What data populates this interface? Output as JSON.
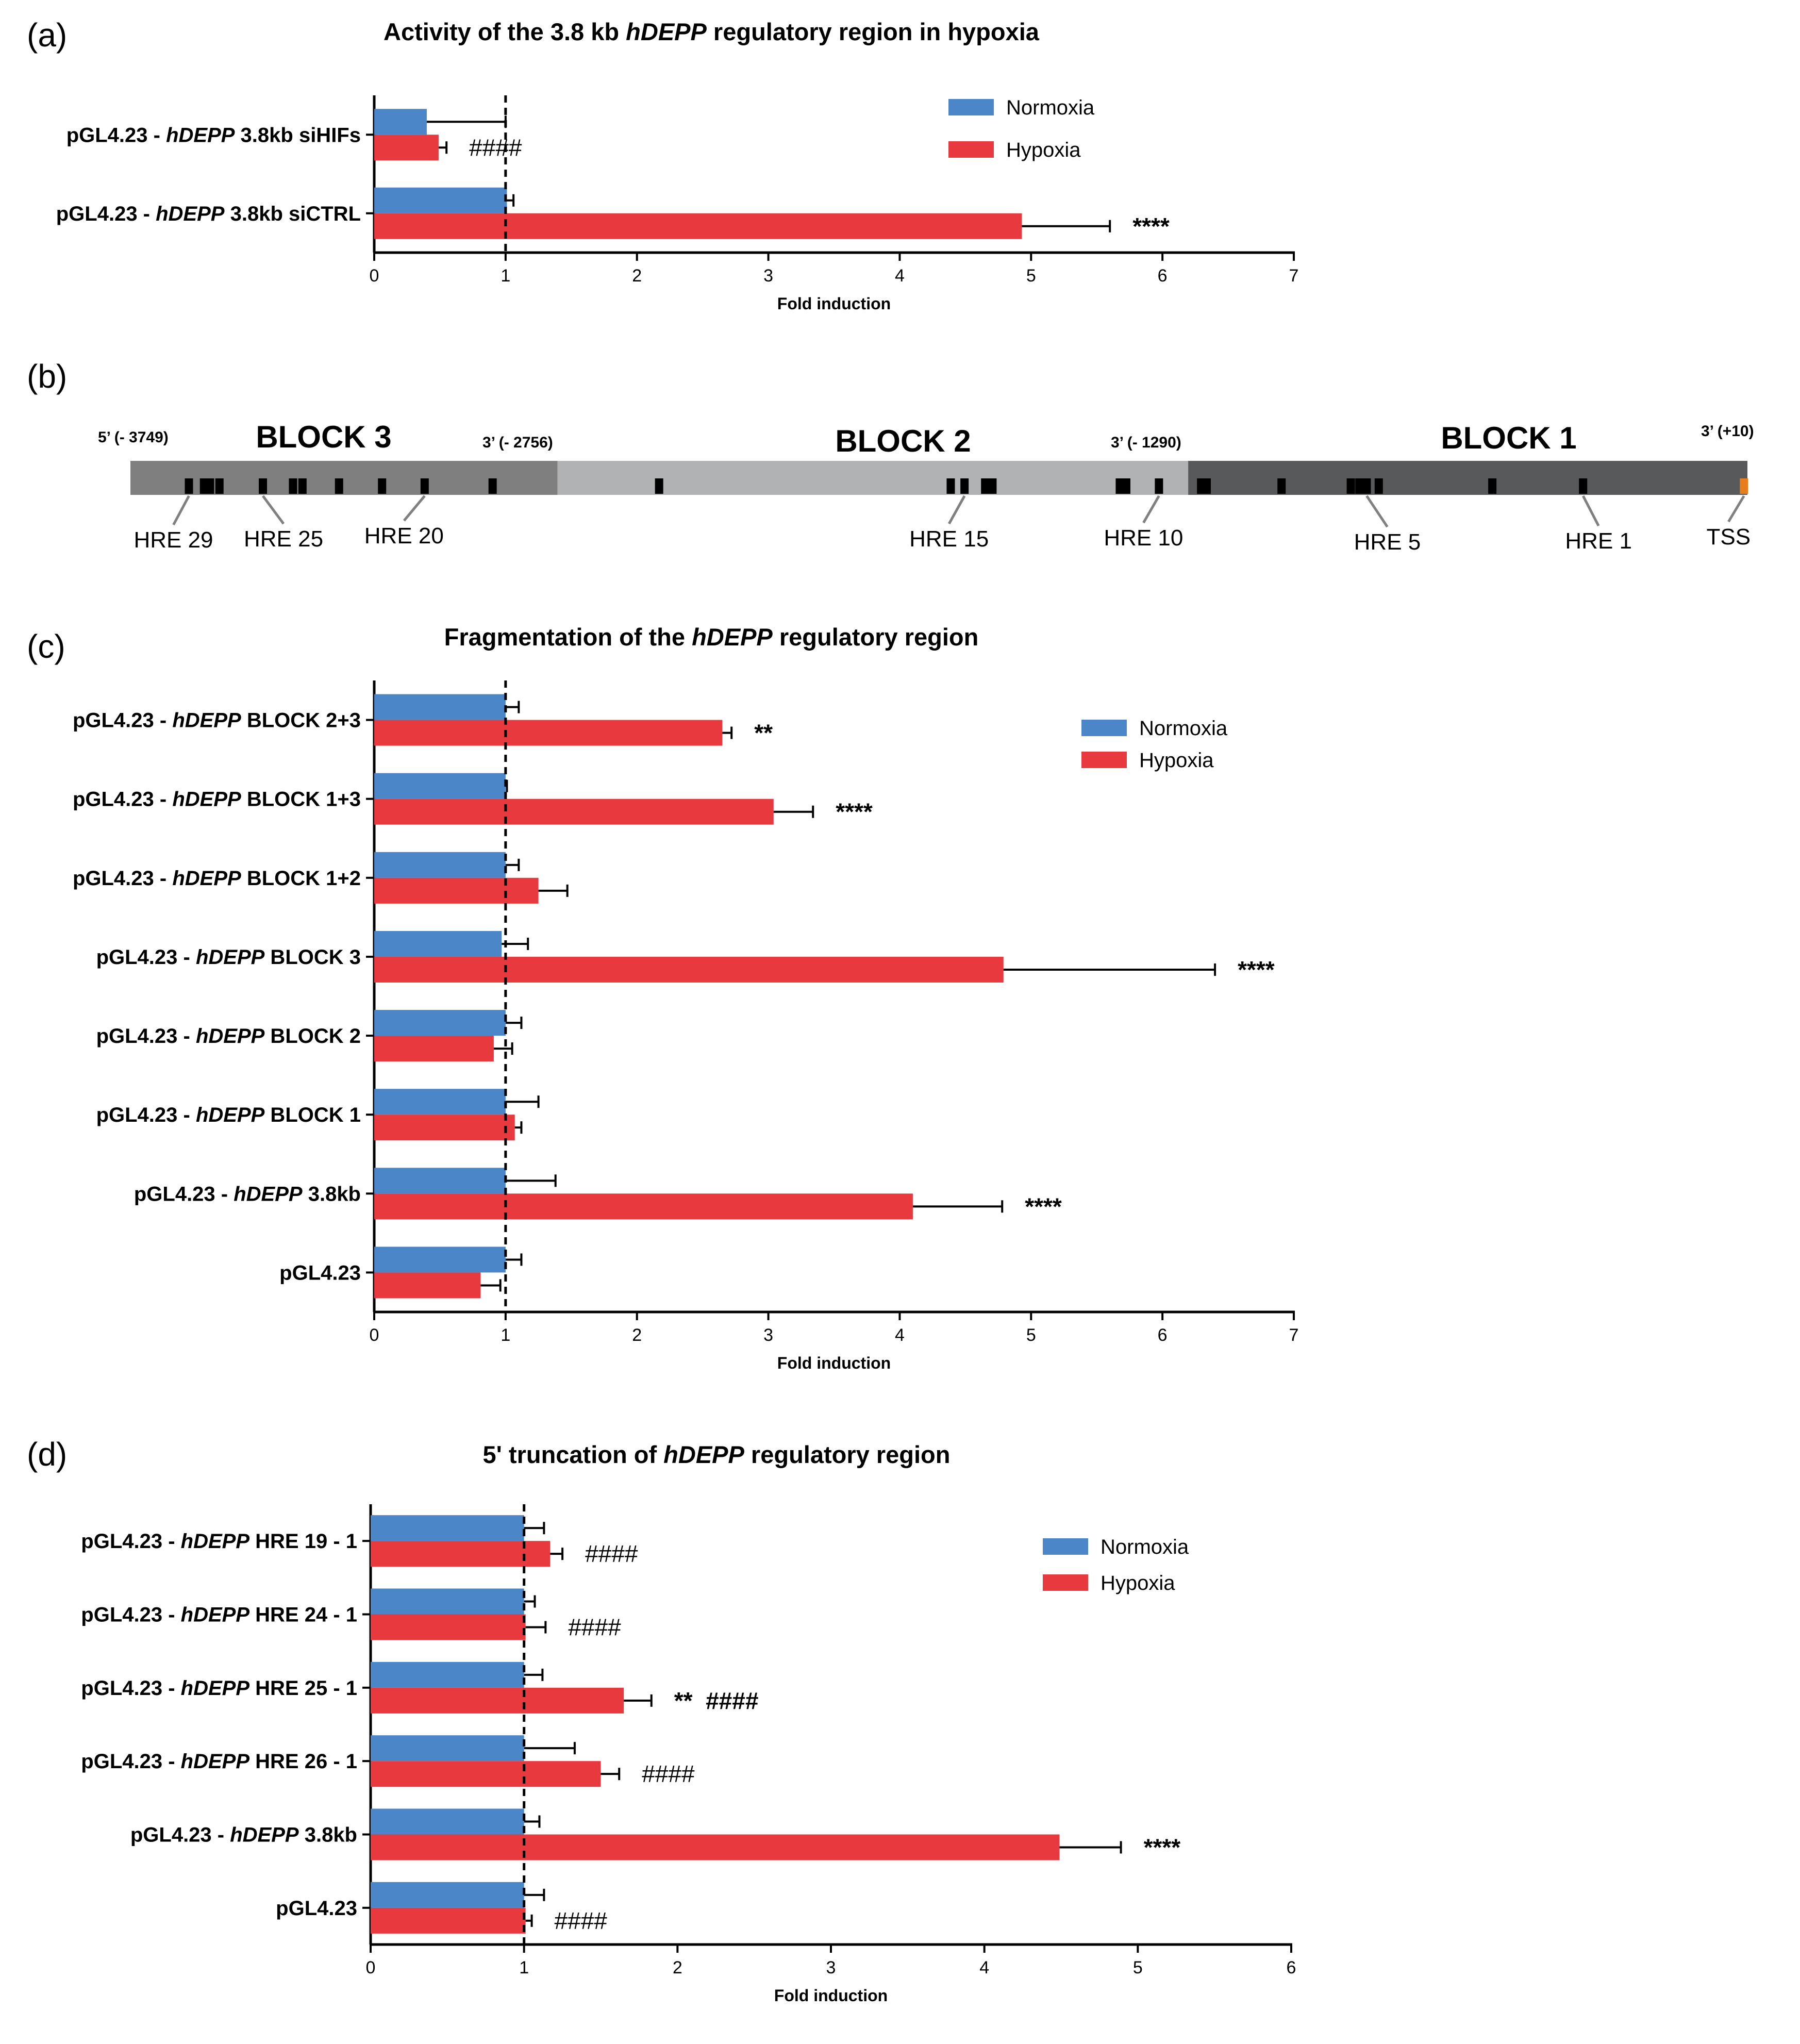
{
  "colors": {
    "normoxia": "#4a86c8",
    "hypoxia": "#e8393f",
    "block3": "#7f7f80",
    "block2": "#b1b2b3",
    "block1": "#58595b",
    "hre": "#000000",
    "tss": "#e87e1b"
  },
  "chart_data": [
    {
      "id": "a",
      "panel_label": "(a)",
      "type": "bar",
      "orientation": "horizontal",
      "title_parts": [
        "Activity of the 3.8 kb ",
        "hDEPP",
        " regulatory region in hypoxia"
      ],
      "title_italic_index": 1,
      "xlabel": "Fold induction",
      "xlim": [
        0,
        7
      ],
      "xticks": [
        0,
        1,
        2,
        3,
        4,
        5,
        6,
        7
      ],
      "reference_line": 1,
      "legend": [
        "Normoxia",
        "Hypoxia"
      ],
      "legend_position": "top-right",
      "categories": [
        {
          "prefix": "pGL4.23 - ",
          "gene": "hDEPP",
          "suffix": " 3.8kb siHIFs",
          "normoxia": 0.4,
          "normoxia_err": 0.6,
          "hypoxia": 0.49,
          "hypoxia_err": 0.06,
          "annotation": "####"
        },
        {
          "prefix": "pGL4.23 - ",
          "gene": "hDEPP",
          "suffix": " 3.8kb siCTRL",
          "normoxia": 1.01,
          "normoxia_err": 0.05,
          "hypoxia": 4.93,
          "hypoxia_err": 0.67,
          "annotation": "****"
        }
      ]
    },
    {
      "id": "b",
      "panel_label": "(b)",
      "type": "diagram",
      "blocks": [
        {
          "name": "BLOCK 3",
          "start_label": "5’ (- 3749)",
          "end_label": "3’ (- 2756)",
          "range": [
            -3749,
            -2756
          ]
        },
        {
          "name": "BLOCK 2",
          "end_label": "3’ (- 1290)",
          "range": [
            -2756,
            -1290
          ]
        },
        {
          "name": "BLOCK 1",
          "end_label": "3’  (+10)",
          "range": [
            -1290,
            10
          ]
        }
      ],
      "hre_positions": [
        -3613,
        -3578,
        -3564,
        -3542,
        -3441,
        -3371,
        -3349,
        -3264,
        -3164,
        -3065,
        -2907,
        -2520,
        -1842,
        -1810,
        -1762,
        -1745,
        -1449,
        -1434,
        -1358,
        -1260,
        -1247,
        -1073,
        -912,
        -892,
        -875,
        -847,
        -583,
        -372
      ],
      "labels": [
        {
          "text": "HRE 29",
          "position": -3613
        },
        {
          "text": "HRE 25",
          "position": -3441
        },
        {
          "text": "HRE 20",
          "position": -3065
        },
        {
          "text": "HRE 15",
          "position": -1810
        },
        {
          "text": "HRE 10",
          "position": -1358
        },
        {
          "text": "HRE 5",
          "position": -875
        },
        {
          "text": "HRE 1",
          "position": -372
        },
        {
          "text": "TSS",
          "position": 2
        }
      ]
    },
    {
      "id": "c",
      "panel_label": "(c)",
      "type": "bar",
      "orientation": "horizontal",
      "title_parts": [
        "Fragmentation of the ",
        "hDEPP",
        " regulatory region"
      ],
      "title_italic_index": 1,
      "xlabel": "Fold induction",
      "xlim": [
        0,
        7
      ],
      "xticks": [
        0,
        1,
        2,
        3,
        4,
        5,
        6,
        7
      ],
      "reference_line": 1,
      "legend": [
        "Normoxia",
        "Hypoxia"
      ],
      "legend_position": "top-right",
      "categories": [
        {
          "prefix": "pGL4.23 - ",
          "gene": "hDEPP",
          "suffix": " BLOCK 2+3",
          "normoxia": 1.0,
          "normoxia_err": 0.1,
          "hypoxia": 2.65,
          "hypoxia_err": 0.07,
          "annotation": "**"
        },
        {
          "prefix": "pGL4.23 - ",
          "gene": "hDEPP",
          "suffix": " BLOCK 1+3",
          "normoxia": 1.0,
          "normoxia_err": 0.01,
          "hypoxia": 3.04,
          "hypoxia_err": 0.3,
          "annotation": "****"
        },
        {
          "prefix": "pGL4.23 - ",
          "gene": "hDEPP",
          "suffix": " BLOCK 1+2",
          "normoxia": 1.0,
          "normoxia_err": 0.1,
          "hypoxia": 1.25,
          "hypoxia_err": 0.22,
          "annotation": ""
        },
        {
          "prefix": "pGL4.23 - ",
          "gene": "hDEPP",
          "suffix": " BLOCK 3",
          "normoxia": 0.97,
          "normoxia_err": 0.2,
          "hypoxia": 4.79,
          "hypoxia_err": 1.61,
          "annotation": "****"
        },
        {
          "prefix": "pGL4.23 - ",
          "gene": "hDEPP",
          "suffix": " BLOCK 2",
          "normoxia": 1.0,
          "normoxia_err": 0.12,
          "hypoxia": 0.91,
          "hypoxia_err": 0.14,
          "annotation": ""
        },
        {
          "prefix": "pGL4.23 - ",
          "gene": "hDEPP",
          "suffix": " BLOCK 1",
          "normoxia": 1.0,
          "normoxia_err": 0.25,
          "hypoxia": 1.07,
          "hypoxia_err": 0.05,
          "annotation": ""
        },
        {
          "prefix": "pGL4.23 - ",
          "gene": "hDEPP",
          "suffix": " 3.8kb",
          "normoxia": 1.0,
          "normoxia_err": 0.38,
          "hypoxia": 4.1,
          "hypoxia_err": 0.68,
          "annotation": "****"
        },
        {
          "prefix": "pGL4.23",
          "gene": "",
          "suffix": "",
          "normoxia": 1.0,
          "normoxia_err": 0.12,
          "hypoxia": 0.81,
          "hypoxia_err": 0.15,
          "annotation": ""
        }
      ]
    },
    {
      "id": "d",
      "panel_label": "(d)",
      "type": "bar",
      "orientation": "horizontal",
      "title_parts": [
        "5' truncation of ",
        "hDEPP",
        " regulatory region"
      ],
      "title_italic_index": 1,
      "xlabel": "Fold induction",
      "xlim": [
        0,
        6
      ],
      "xticks": [
        0,
        1,
        2,
        3,
        4,
        5,
        6
      ],
      "reference_line": 1,
      "legend": [
        "Normoxia",
        "Hypoxia"
      ],
      "legend_position": "top-right",
      "categories": [
        {
          "prefix": "pGL4.23 - ",
          "gene": "hDEPP",
          "suffix": " HRE 19 - 1",
          "normoxia": 1.0,
          "normoxia_err": 0.13,
          "hypoxia": 1.17,
          "hypoxia_err": 0.08,
          "annotation": "####"
        },
        {
          "prefix": "pGL4.23 - ",
          "gene": "hDEPP",
          "suffix": " HRE 24 - 1",
          "normoxia": 1.0,
          "normoxia_err": 0.07,
          "hypoxia": 1.01,
          "hypoxia_err": 0.13,
          "annotation": "####"
        },
        {
          "prefix": "pGL4.23 - ",
          "gene": "hDEPP",
          "suffix": " HRE 25 - 1",
          "normoxia": 1.0,
          "normoxia_err": 0.12,
          "hypoxia": 1.65,
          "hypoxia_err": 0.18,
          "annotation": "**  ####"
        },
        {
          "prefix": "pGL4.23 - ",
          "gene": "hDEPP",
          "suffix": " HRE 26 - 1",
          "normoxia": 1.0,
          "normoxia_err": 0.33,
          "hypoxia": 1.5,
          "hypoxia_err": 0.12,
          "annotation": "####"
        },
        {
          "prefix": "pGL4.23 - ",
          "gene": "hDEPP",
          "suffix": " 3.8kb",
          "normoxia": 1.0,
          "normoxia_err": 0.1,
          "hypoxia": 4.49,
          "hypoxia_err": 0.4,
          "annotation": "****"
        },
        {
          "prefix": "pGL4.23",
          "gene": "",
          "suffix": "",
          "normoxia": 1.0,
          "normoxia_err": 0.13,
          "hypoxia": 1.01,
          "hypoxia_err": 0.04,
          "annotation": "####"
        }
      ]
    }
  ]
}
